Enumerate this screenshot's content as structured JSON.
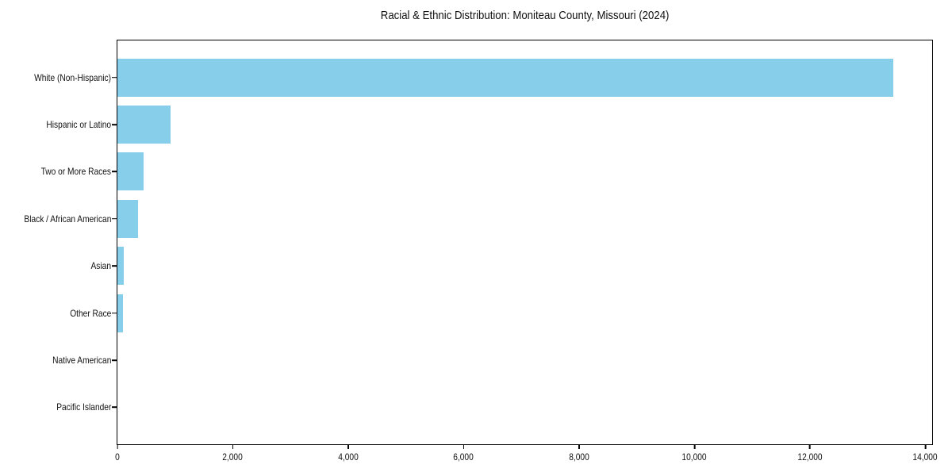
{
  "title": "Racial & Ethnic Distribution: Moniteau County, Missouri (2024)",
  "colors": {
    "bar_fill": "#87CEEB",
    "axis": "#000000",
    "background": "#ffffff",
    "text": "#111111"
  },
  "chart_data": {
    "type": "bar",
    "orientation": "horizontal",
    "title": "Racial & Ethnic Distribution: Moniteau County, Missouri (2024)",
    "categories": [
      "White (Non-Hispanic)",
      "Hispanic or Latino",
      "Two or More Races",
      "Black / African American",
      "Asian",
      "Other Race",
      "Native American",
      "Pacific Islander"
    ],
    "values": [
      13440,
      920,
      460,
      360,
      115,
      95,
      0,
      0
    ],
    "xlabel": "",
    "ylabel": "",
    "xlim": [
      0,
      14118
    ],
    "x_ticks": [
      0,
      2000,
      4000,
      6000,
      8000,
      10000,
      12000,
      14000
    ],
    "x_tick_labels": [
      "0",
      "2,000",
      "4,000",
      "6,000",
      "8,000",
      "10,000",
      "12,000",
      "14,000"
    ],
    "grid": false,
    "legend": "none",
    "bar_color": "#87CEEB",
    "frame": "full-box"
  }
}
